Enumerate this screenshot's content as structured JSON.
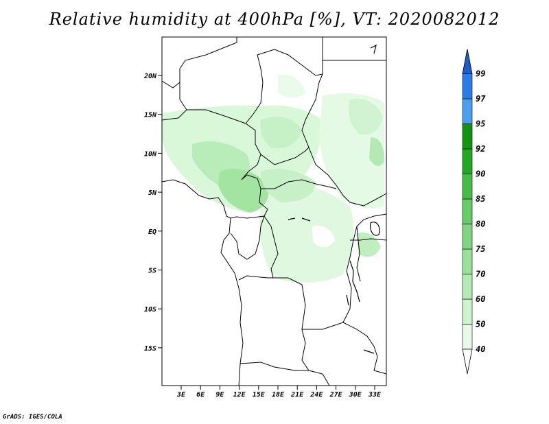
{
  "title": "Relative humidity at 400hPa [%], VT: 2020082012",
  "credit": "GrADS: IGES/COLA",
  "lat_ticks": [
    "20N",
    "15N",
    "10N",
    "5N",
    "EQ",
    "5S",
    "10S",
    "15S"
  ],
  "lon_ticks": [
    "3E",
    "6E",
    "9E",
    "12E",
    "15E",
    "18E",
    "21E",
    "24E",
    "27E",
    "30E",
    "33E"
  ],
  "colorbar": {
    "labels": [
      "40",
      "50",
      "60",
      "70",
      "75",
      "80",
      "85",
      "90",
      "92",
      "95",
      "97",
      "99"
    ],
    "colors": [
      "#ffffff",
      "#e6fae6",
      "#cdf4cd",
      "#b4ebb4",
      "#99e099",
      "#80d680",
      "#66cc66",
      "#44bb44",
      "#22a822",
      "#119611",
      "#4c9ef0",
      "#2b7ce6",
      "#1a5fc9"
    ]
  }
}
